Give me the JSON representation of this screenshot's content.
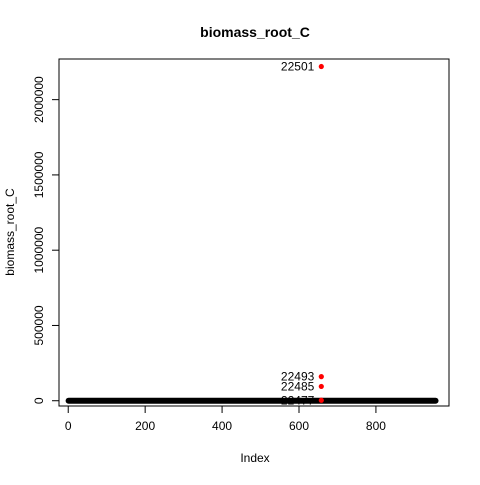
{
  "chart_data": {
    "type": "scatter",
    "title": "biomass_root_C",
    "xlabel": "Index",
    "ylabel": "biomass_root_C",
    "xlim": [
      -24,
      990
    ],
    "ylim": [
      -35000,
      2270000
    ],
    "x_ticks": [
      0,
      200,
      400,
      600,
      800
    ],
    "x_tick_labels": [
      "0",
      "200",
      "400",
      "600",
      "800"
    ],
    "y_ticks": [
      0,
      500000,
      1000000,
      1500000,
      2000000
    ],
    "y_tick_labels": [
      "0",
      "500000",
      "1000000",
      "1500000",
      "2000000"
    ],
    "baseline": {
      "x_start": 1,
      "x_end": 955,
      "y": 0
    },
    "series": [
      {
        "color": "#000000",
        "points": [
          {
            "x": 1,
            "y": 0
          },
          {
            "x": 20,
            "y": 0
          },
          {
            "x": 50,
            "y": 0
          },
          {
            "x": 100,
            "y": 0
          },
          {
            "x": 150,
            "y": 0
          },
          {
            "x": 200,
            "y": 0
          },
          {
            "x": 250,
            "y": 0
          },
          {
            "x": 300,
            "y": 0
          },
          {
            "x": 350,
            "y": 0
          },
          {
            "x": 400,
            "y": 0
          },
          {
            "x": 450,
            "y": 0
          },
          {
            "x": 500,
            "y": 0
          },
          {
            "x": 550,
            "y": 0
          },
          {
            "x": 600,
            "y": 0
          },
          {
            "x": 650,
            "y": 0
          },
          {
            "x": 700,
            "y": 0
          },
          {
            "x": 750,
            "y": 0
          },
          {
            "x": 800,
            "y": 0
          },
          {
            "x": 850,
            "y": 0
          },
          {
            "x": 900,
            "y": 0
          },
          {
            "x": 955,
            "y": 0
          }
        ]
      },
      {
        "color": "#ff0000",
        "points": [
          {
            "x": 658,
            "y": 2220000,
            "label": "22501"
          },
          {
            "x": 658,
            "y": 160000,
            "label": "22493"
          },
          {
            "x": 658,
            "y": 95000,
            "label": "22485"
          },
          {
            "x": 658,
            "y": 3000,
            "label": "22477"
          }
        ]
      }
    ]
  }
}
